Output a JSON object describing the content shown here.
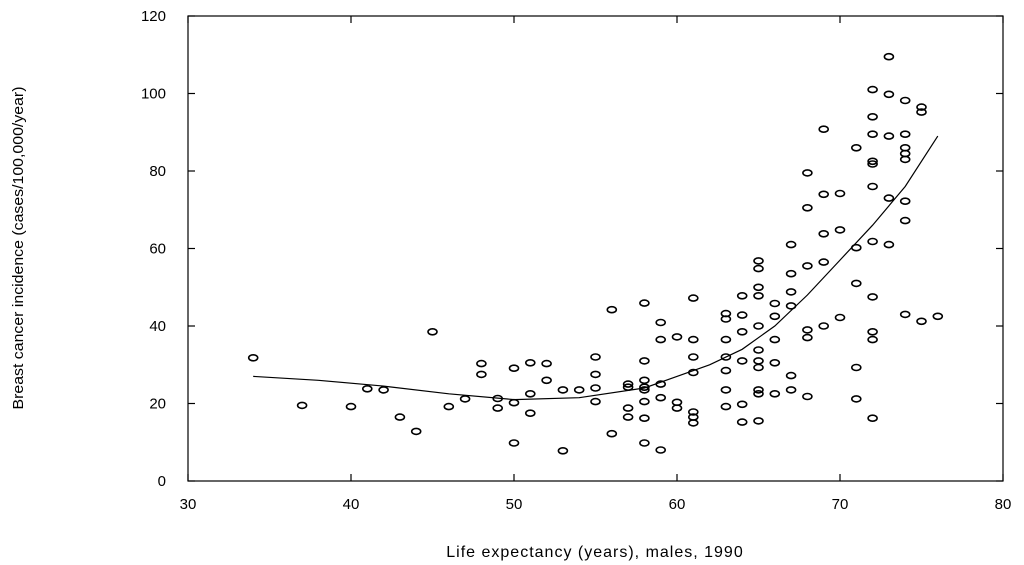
{
  "chart_data": {
    "type": "scatter",
    "title": "",
    "xlabel": "Life expectancy (years), males, 1990",
    "ylabel": "Breast cancer incidence (cases/100,000/year)",
    "xlim": [
      30,
      80
    ],
    "ylim": [
      0,
      120
    ],
    "x_ticks": [
      30,
      40,
      50,
      60,
      70,
      80
    ],
    "y_ticks": [
      0,
      20,
      40,
      60,
      80,
      100,
      120
    ],
    "grid": false,
    "marker_color": "#000000",
    "points": [
      [
        34,
        31.8
      ],
      [
        37,
        19.5
      ],
      [
        40,
        19.2
      ],
      [
        41,
        23.8
      ],
      [
        42,
        23.5
      ],
      [
        43,
        16.5
      ],
      [
        44,
        12.8
      ],
      [
        45,
        38.5
      ],
      [
        46,
        19.2
      ],
      [
        47,
        21.2
      ],
      [
        48,
        27.5
      ],
      [
        48,
        30.3
      ],
      [
        49,
        21.3
      ],
      [
        49,
        18.8
      ],
      [
        50,
        20.2
      ],
      [
        50,
        29.1
      ],
      [
        50,
        9.8
      ],
      [
        51,
        30.5
      ],
      [
        51,
        22.5
      ],
      [
        51,
        17.5
      ],
      [
        52,
        30.3
      ],
      [
        52,
        26.0
      ],
      [
        53,
        23.5
      ],
      [
        53,
        7.8
      ],
      [
        54,
        23.5
      ],
      [
        55,
        32.0
      ],
      [
        55,
        27.5
      ],
      [
        55,
        24.0
      ],
      [
        55,
        20.5
      ],
      [
        56,
        44.2
      ],
      [
        56,
        12.2
      ],
      [
        57,
        25.0
      ],
      [
        57,
        24.2
      ],
      [
        57,
        18.8
      ],
      [
        57,
        16.5
      ],
      [
        58,
        45.9
      ],
      [
        58,
        31.0
      ],
      [
        58,
        26.0
      ],
      [
        58,
        24.2
      ],
      [
        58,
        23.5
      ],
      [
        58,
        20.5
      ],
      [
        58,
        16.2
      ],
      [
        58,
        9.8
      ],
      [
        59,
        40.9
      ],
      [
        59,
        36.5
      ],
      [
        59,
        25.0
      ],
      [
        59,
        21.5
      ],
      [
        59,
        8.0
      ],
      [
        60,
        37.2
      ],
      [
        60,
        20.3
      ],
      [
        60,
        18.8
      ],
      [
        61,
        47.2
      ],
      [
        61,
        36.5
      ],
      [
        61,
        32.0
      ],
      [
        61,
        28.0
      ],
      [
        61,
        17.8
      ],
      [
        61,
        16.5
      ],
      [
        61,
        15.0
      ],
      [
        63,
        43.2
      ],
      [
        63,
        41.8
      ],
      [
        63,
        36.5
      ],
      [
        63,
        32.0
      ],
      [
        63,
        28.5
      ],
      [
        63,
        23.5
      ],
      [
        63,
        19.2
      ],
      [
        64,
        47.8
      ],
      [
        64,
        42.8
      ],
      [
        64,
        38.5
      ],
      [
        64,
        31.0
      ],
      [
        64,
        19.8
      ],
      [
        64,
        15.2
      ],
      [
        65,
        56.8
      ],
      [
        65,
        54.8
      ],
      [
        65,
        50.0
      ],
      [
        65,
        47.8
      ],
      [
        65,
        40.0
      ],
      [
        65,
        33.8
      ],
      [
        65,
        31.0
      ],
      [
        65,
        29.3
      ],
      [
        65,
        23.5
      ],
      [
        65,
        22.5
      ],
      [
        65,
        15.5
      ],
      [
        66,
        45.8
      ],
      [
        66,
        42.5
      ],
      [
        66,
        36.5
      ],
      [
        66,
        30.5
      ],
      [
        66,
        22.5
      ],
      [
        67,
        61.0
      ],
      [
        67,
        53.5
      ],
      [
        67,
        48.8
      ],
      [
        67,
        45.2
      ],
      [
        67,
        27.2
      ],
      [
        67,
        23.5
      ],
      [
        68,
        79.5
      ],
      [
        68,
        70.5
      ],
      [
        68,
        55.5
      ],
      [
        68,
        39.0
      ],
      [
        68,
        37.0
      ],
      [
        68,
        21.8
      ],
      [
        69,
        90.8
      ],
      [
        69,
        74.0
      ],
      [
        69,
        63.8
      ],
      [
        69,
        56.5
      ],
      [
        69,
        40.0
      ],
      [
        70,
        74.2
      ],
      [
        70,
        64.8
      ],
      [
        70,
        42.2
      ],
      [
        71,
        86.0
      ],
      [
        71,
        60.2
      ],
      [
        71,
        51.0
      ],
      [
        71,
        29.3
      ],
      [
        71,
        21.2
      ],
      [
        72,
        101.0
      ],
      [
        72,
        94.0
      ],
      [
        72,
        89.5
      ],
      [
        72,
        82.5
      ],
      [
        72,
        81.8
      ],
      [
        72,
        76.0
      ],
      [
        72,
        61.8
      ],
      [
        72,
        47.5
      ],
      [
        72,
        38.5
      ],
      [
        72,
        36.5
      ],
      [
        72,
        16.2
      ],
      [
        73,
        109.5
      ],
      [
        73,
        99.8
      ],
      [
        73,
        89.0
      ],
      [
        73,
        73.0
      ],
      [
        73,
        61.0
      ],
      [
        74,
        98.2
      ],
      [
        74,
        89.5
      ],
      [
        74,
        86.0
      ],
      [
        74,
        84.5
      ],
      [
        74,
        83.0
      ],
      [
        74,
        72.2
      ],
      [
        74,
        67.2
      ],
      [
        74,
        43.0
      ],
      [
        75,
        96.5
      ],
      [
        75,
        95.2
      ],
      [
        75,
        41.2
      ],
      [
        76,
        42.5
      ]
    ],
    "trend_line": [
      [
        34,
        27.0
      ],
      [
        38,
        26.0
      ],
      [
        42,
        24.5
      ],
      [
        46,
        22.5
      ],
      [
        50,
        21.0
      ],
      [
        54,
        21.5
      ],
      [
        58,
        24.0
      ],
      [
        62,
        30.0
      ],
      [
        64,
        34.0
      ],
      [
        66,
        40.0
      ],
      [
        68,
        48.0
      ],
      [
        70,
        57.0
      ],
      [
        72,
        66.0
      ],
      [
        74,
        76.0
      ],
      [
        76,
        89.0
      ]
    ]
  }
}
